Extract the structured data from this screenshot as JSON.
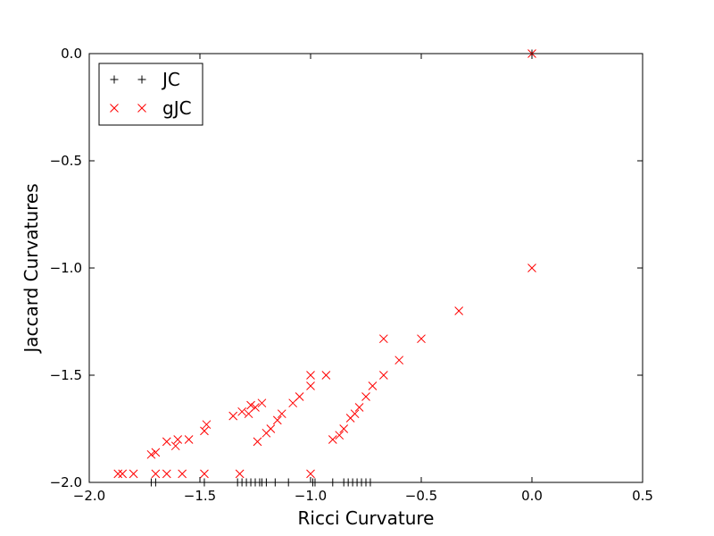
{
  "chart_data": {
    "type": "scatter",
    "title": "",
    "xlabel": "Ricci Curvature",
    "ylabel": "Jaccard Curvatures",
    "xlim": [
      -2.0,
      0.5
    ],
    "ylim": [
      -2.0,
      0.0
    ],
    "xticks": [
      -2.0,
      -1.5,
      -1.0,
      -0.5,
      0.0,
      0.5
    ],
    "xtick_labels": [
      "−2.0",
      "−1.5",
      "−1.0",
      "−0.5",
      "0.0",
      "0.5"
    ],
    "yticks": [
      0.0,
      -0.5,
      -1.0,
      -1.5,
      -2.0
    ],
    "ytick_labels": [
      "0.0",
      "−0.5",
      "−1.0",
      "−1.5",
      "−2.0"
    ],
    "grid": false,
    "legend": {
      "position": "top-left"
    },
    "series": [
      {
        "name": "JC",
        "marker": "+",
        "color": "#000000",
        "points": [
          [
            -1.72,
            -2.0
          ],
          [
            -1.7,
            -2.0
          ],
          [
            -1.48,
            -2.0
          ],
          [
            -1.33,
            -2.0
          ],
          [
            -1.31,
            -2.0
          ],
          [
            -1.29,
            -2.0
          ],
          [
            -1.27,
            -2.0
          ],
          [
            -1.25,
            -2.0
          ],
          [
            -1.23,
            -2.0
          ],
          [
            -1.22,
            -2.0
          ],
          [
            -1.2,
            -2.0
          ],
          [
            -1.16,
            -2.0
          ],
          [
            -1.1,
            -2.0
          ],
          [
            -0.99,
            -2.0
          ],
          [
            -0.98,
            -2.0
          ],
          [
            -0.9,
            -2.0
          ],
          [
            -0.85,
            -2.0
          ],
          [
            -0.83,
            -2.0
          ],
          [
            -0.81,
            -2.0
          ],
          [
            -0.79,
            -2.0
          ],
          [
            -0.77,
            -2.0
          ],
          [
            -0.75,
            -2.0
          ],
          [
            -0.73,
            -2.0
          ],
          [
            0.0,
            0.0
          ]
        ]
      },
      {
        "name": "gJC",
        "marker": "x",
        "color": "#ff0000",
        "points": [
          [
            0.0,
            0.0
          ],
          [
            0.0,
            -1.0
          ],
          [
            -0.33,
            -1.2
          ],
          [
            -0.5,
            -1.33
          ],
          [
            -0.67,
            -1.33
          ],
          [
            -0.6,
            -1.43
          ],
          [
            -0.67,
            -1.5
          ],
          [
            -0.72,
            -1.55
          ],
          [
            -0.75,
            -1.6
          ],
          [
            -0.78,
            -1.65
          ],
          [
            -0.8,
            -1.68
          ],
          [
            -0.82,
            -1.7
          ],
          [
            -0.85,
            -1.75
          ],
          [
            -0.87,
            -1.78
          ],
          [
            -0.9,
            -1.8
          ],
          [
            -0.93,
            -1.5
          ],
          [
            -1.0,
            -1.5
          ],
          [
            -1.0,
            -1.55
          ],
          [
            -1.05,
            -1.6
          ],
          [
            -1.08,
            -1.63
          ],
          [
            -1.13,
            -1.68
          ],
          [
            -1.15,
            -1.71
          ],
          [
            -1.18,
            -1.75
          ],
          [
            -1.2,
            -1.77
          ],
          [
            -1.22,
            -1.63
          ],
          [
            -1.25,
            -1.65
          ],
          [
            -1.27,
            -1.64
          ],
          [
            -1.28,
            -1.68
          ],
          [
            -1.31,
            -1.67
          ],
          [
            -1.35,
            -1.69
          ],
          [
            -1.47,
            -1.73
          ],
          [
            -1.48,
            -1.76
          ],
          [
            -1.55,
            -1.8
          ],
          [
            -1.6,
            -1.8
          ],
          [
            -1.61,
            -1.83
          ],
          [
            -1.65,
            -1.81
          ],
          [
            -1.7,
            -1.86
          ],
          [
            -1.72,
            -1.87
          ],
          [
            -1.24,
            -1.81
          ],
          [
            -1.0,
            -1.96
          ],
          [
            -1.32,
            -1.96
          ],
          [
            -1.48,
            -1.96
          ],
          [
            -1.58,
            -1.96
          ],
          [
            -1.65,
            -1.96
          ],
          [
            -1.7,
            -1.96
          ],
          [
            -1.8,
            -1.96
          ],
          [
            -1.85,
            -1.96
          ],
          [
            -1.87,
            -1.96
          ]
        ]
      }
    ]
  }
}
